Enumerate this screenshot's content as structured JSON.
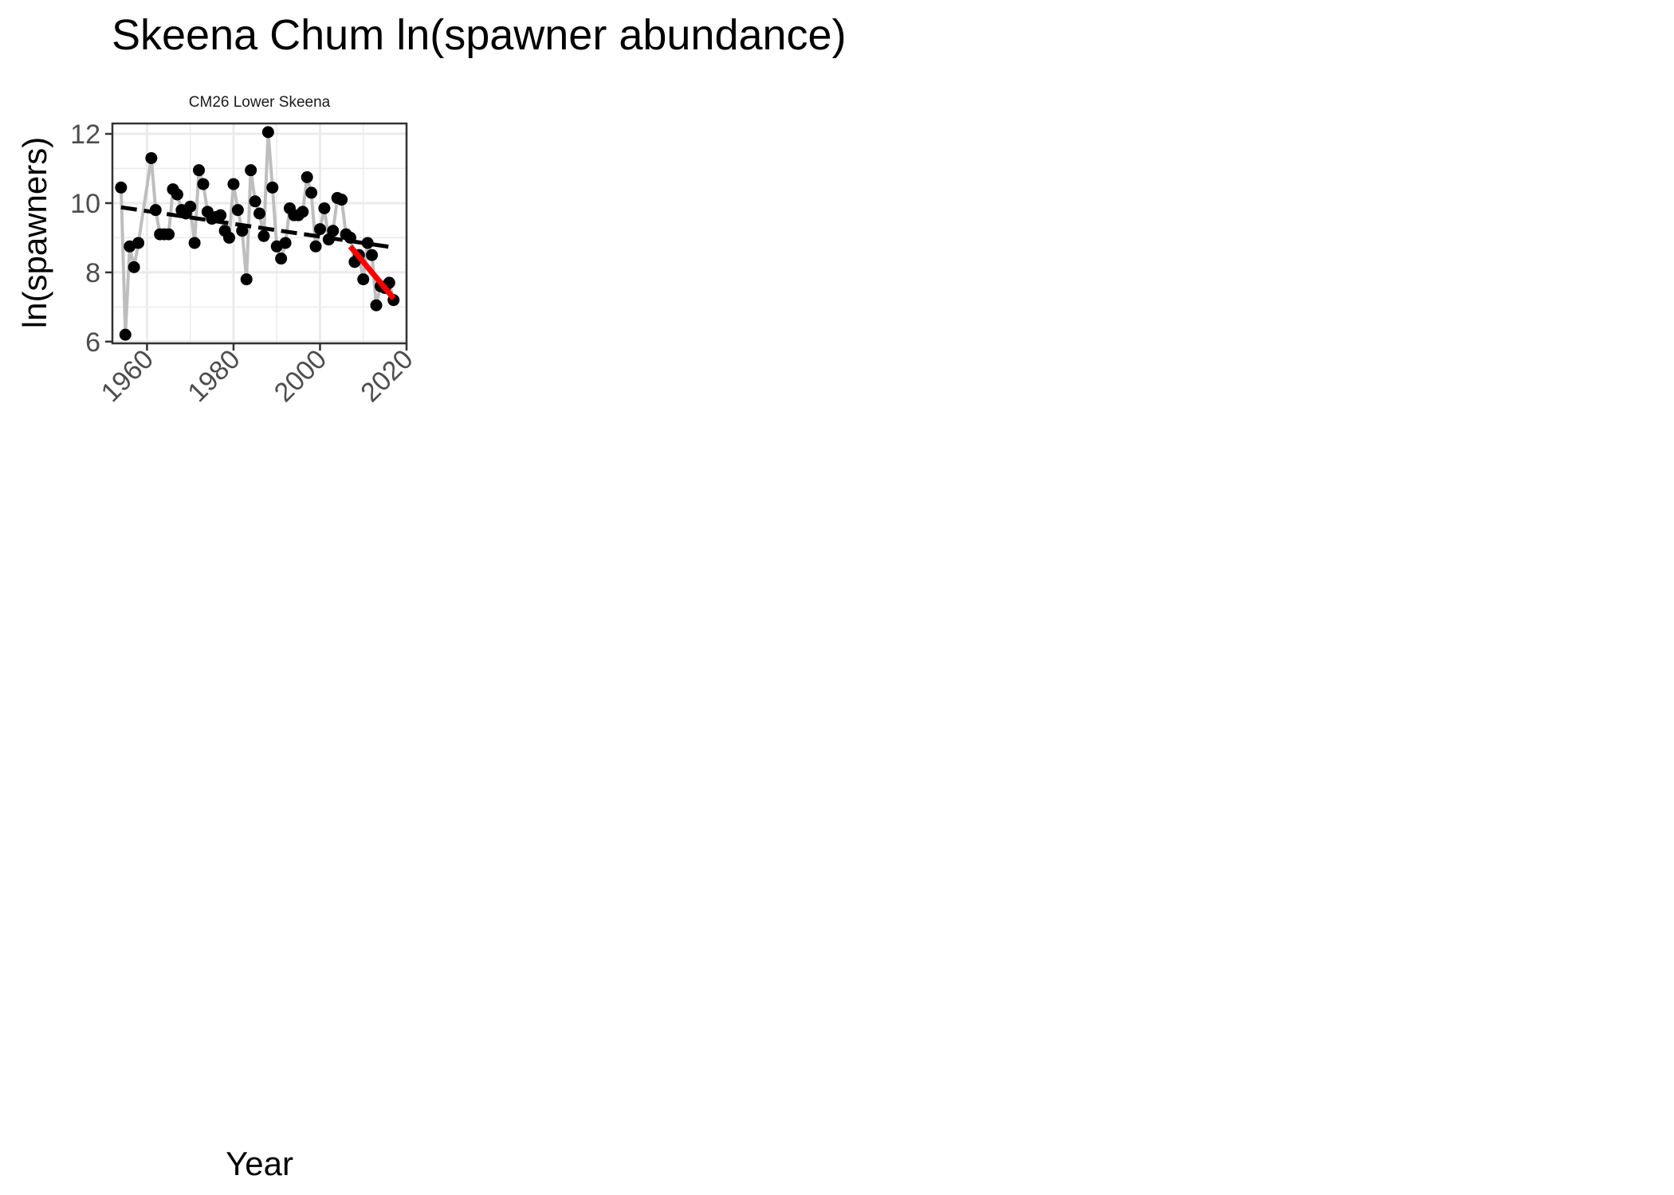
{
  "chart_data": {
    "type": "line",
    "title": "Skeena Chum ln(spawner abundance)",
    "panel_title": "CM26 Lower Skeena",
    "xlabel": "Year",
    "ylabel": "ln(spawners)",
    "xlim": [
      1952,
      2020
    ],
    "ylim": [
      5.95,
      12.3
    ],
    "xticks": [
      1960,
      1980,
      2000,
      2020
    ],
    "yticks": [
      6,
      8,
      10,
      12
    ],
    "grid": true,
    "colors": {
      "points": "#000000",
      "observed_line": "#bebebe",
      "long_term_trend": "#000000",
      "recent_trend": "#ff0000",
      "grid": "#ebebeb",
      "panel_border": "#333333"
    },
    "series": [
      {
        "type": "line+points",
        "x": [
          1954,
          1955,
          1956,
          1957,
          1958,
          1961,
          1962,
          1963,
          1964,
          1965,
          1966,
          1967,
          1968,
          1969,
          1970,
          1971,
          1972,
          1973,
          1974,
          1975,
          1976,
          1977,
          1978,
          1979,
          1980,
          1981,
          1982,
          1983,
          1984,
          1985,
          1986,
          1987,
          1988,
          1989,
          1990,
          1991,
          1992,
          1993,
          1994,
          1995,
          1996,
          1997,
          1998,
          1999,
          2000,
          2001,
          2002,
          2003,
          2004,
          2005,
          2006,
          2007,
          2008,
          2009,
          2010,
          2011,
          2012,
          2013,
          2014,
          2015,
          2016,
          2017
        ],
        "values": [
          10.45,
          6.2,
          8.75,
          8.15,
          8.85,
          11.3,
          9.8,
          9.1,
          9.1,
          9.1,
          10.4,
          10.25,
          9.8,
          9.7,
          9.9,
          8.85,
          10.95,
          10.55,
          9.75,
          9.55,
          9.6,
          9.65,
          9.2,
          9.0,
          10.55,
          9.8,
          9.2,
          7.8,
          10.95,
          10.05,
          9.7,
          9.05,
          12.05,
          10.45,
          8.75,
          8.4,
          8.85,
          9.85,
          9.65,
          9.65,
          9.75,
          10.75,
          10.3,
          8.75,
          9.25,
          9.85,
          8.95,
          9.2,
          10.15,
          10.1,
          9.1,
          9.0,
          8.3,
          8.5,
          7.8,
          8.85,
          8.5,
          7.05,
          7.6,
          7.55,
          7.7,
          7.2
        ]
      },
      {
        "type": "dashed-trend",
        "x": [
          1954,
          2017
        ],
        "values": [
          9.88,
          8.72
        ]
      },
      {
        "type": "recent-trend",
        "x": [
          2007,
          2017
        ],
        "values": [
          8.75,
          7.25
        ]
      }
    ]
  }
}
